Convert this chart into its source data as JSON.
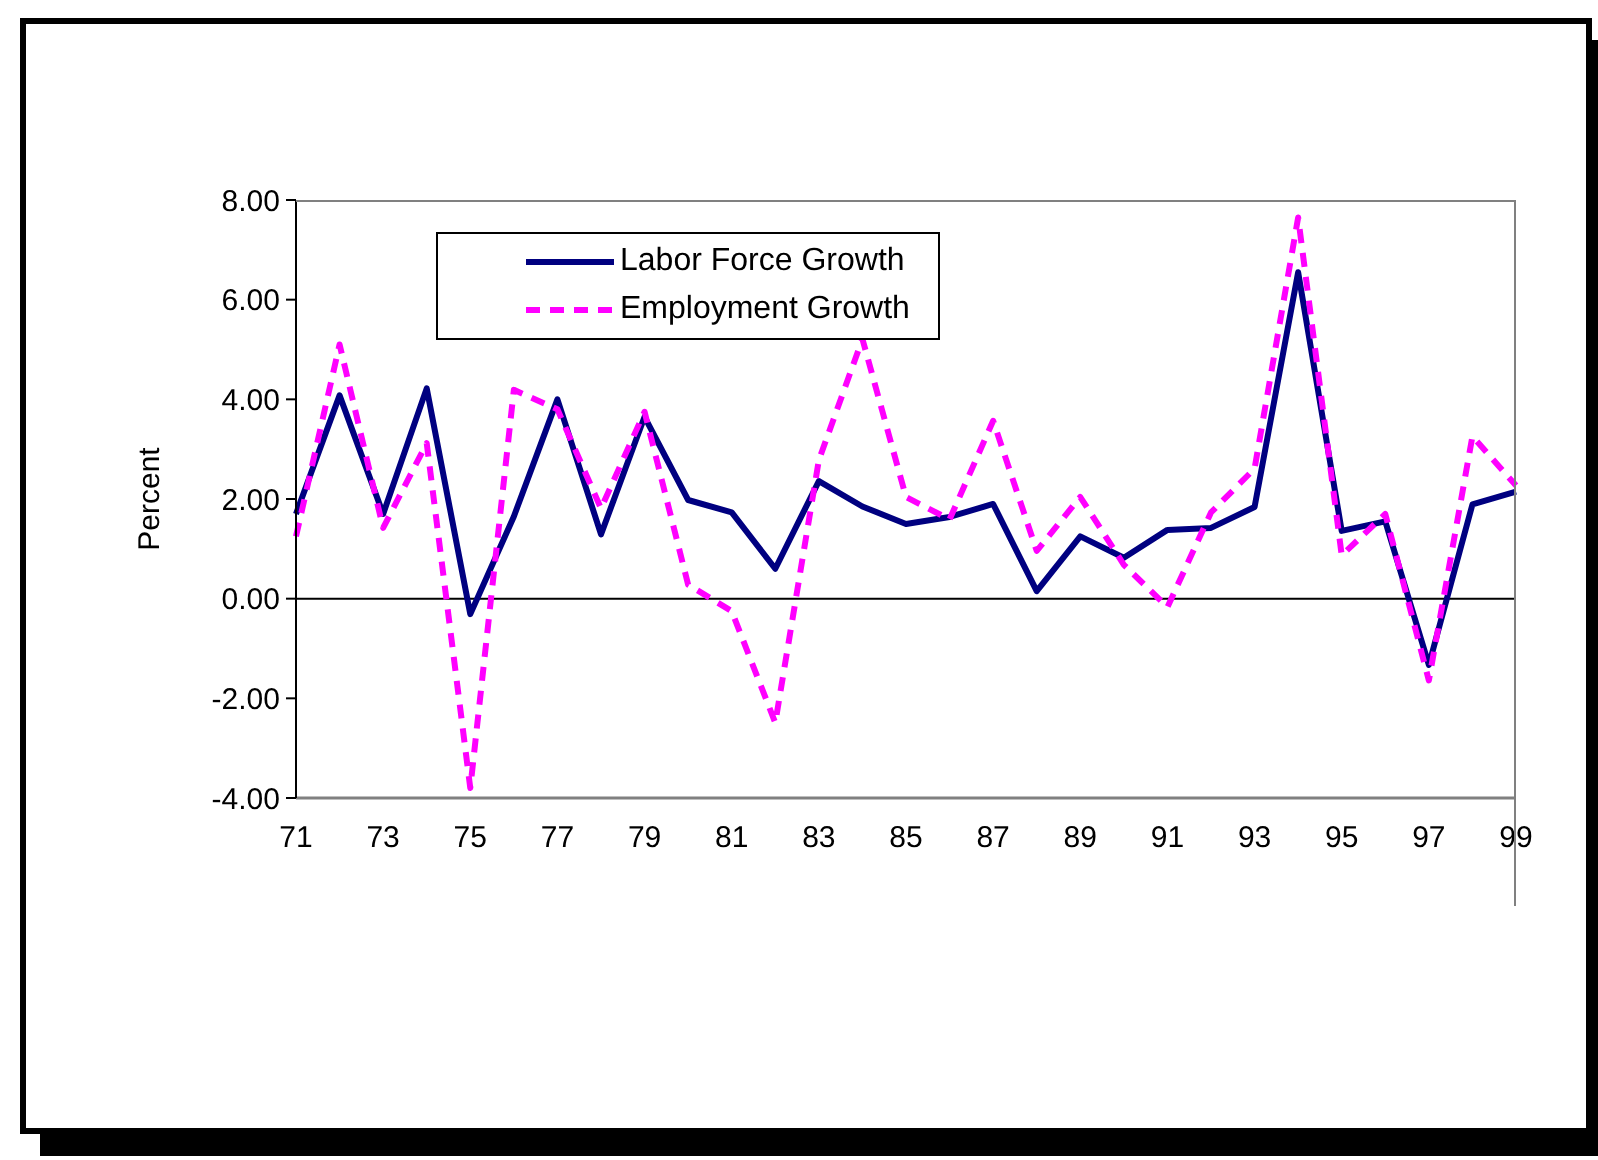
{
  "chart_data": {
    "type": "line",
    "ylabel": "Percent",
    "categories": [
      "71",
      null,
      "73",
      null,
      "75",
      null,
      "77",
      null,
      "79",
      null,
      "81",
      null,
      "83",
      null,
      "85",
      null,
      "87",
      null,
      "89",
      null,
      "91",
      null,
      "93",
      null,
      "95",
      null,
      "97",
      null,
      "99"
    ],
    "series": [
      {
        "name": "Labor Force Growth",
        "color": "#000080",
        "line_style": "solid",
        "values": [
          1.7,
          4.08,
          1.7,
          4.22,
          -0.31,
          1.65,
          4.0,
          1.29,
          3.65,
          1.98,
          1.73,
          0.6,
          2.36,
          1.85,
          1.5,
          1.64,
          1.9,
          0.15,
          1.25,
          0.82,
          1.38,
          1.42,
          1.84,
          6.55,
          1.36,
          1.55,
          -1.33,
          1.89,
          2.15
        ]
      },
      {
        "name": "Employment Growth",
        "color": "#ff00ff",
        "line_style": "dashed",
        "values": [
          1.25,
          5.1,
          1.42,
          3.12,
          -3.8,
          4.19,
          3.8,
          1.81,
          3.75,
          0.28,
          -0.25,
          -2.49,
          2.78,
          5.21,
          2.04,
          1.59,
          3.57,
          0.96,
          2.04,
          0.68,
          -0.17,
          1.73,
          2.61,
          7.65,
          0.87,
          1.7,
          -1.64,
          3.26,
          2.27
        ]
      }
    ],
    "ylim": [
      -4,
      8
    ],
    "yticks": [
      {
        "value": -4,
        "label": "-4.00"
      },
      {
        "value": -2,
        "label": "-2.00"
      },
      {
        "value": 0,
        "label": "0.00"
      },
      {
        "value": 2,
        "label": "2.00"
      },
      {
        "value": 4,
        "label": "4.00"
      },
      {
        "value": 6,
        "label": "6.00"
      },
      {
        "value": 8,
        "label": "8.00"
      }
    ],
    "ref_lines": [
      {
        "axis": "y",
        "value": 0,
        "color": "#000000"
      }
    ],
    "legend": "top left",
    "marker": "none"
  }
}
